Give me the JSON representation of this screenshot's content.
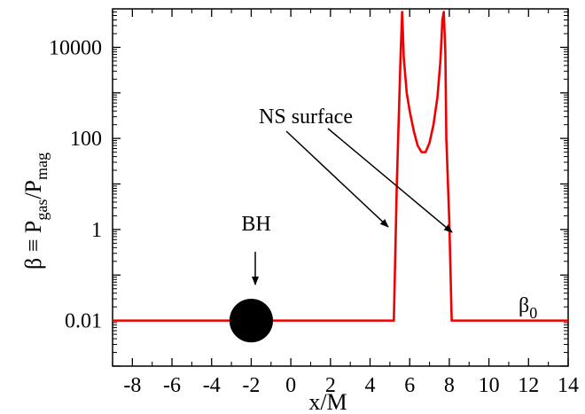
{
  "chart_data": {
    "type": "line",
    "title": "",
    "xlabel": "x/M",
    "ylabel": {
      "base": "β ≡ P",
      "sub1": "gas",
      "mid": "/P",
      "sub2": "mag"
    },
    "xlim": [
      -9,
      14
    ],
    "ylim": [
      0.001,
      70000
    ],
    "yscale": "log",
    "grid": false,
    "line_color": "#ee0000",
    "xticks": [
      -8,
      -6,
      -4,
      -2,
      0,
      2,
      4,
      6,
      8,
      10,
      12,
      14
    ],
    "xtick_labels": [
      "-8",
      "-6",
      "-4",
      "-2",
      "0",
      "2",
      "4",
      "6",
      "8",
      "10",
      "12",
      "14"
    ],
    "yticks": [
      0.01,
      1,
      100,
      10000
    ],
    "ytick_labels": [
      "0.01",
      "1",
      "100",
      "10000"
    ],
    "series": [
      {
        "x": [
          -9.2,
          5.2,
          5.35,
          5.45,
          5.55,
          5.62,
          5.7,
          5.85,
          6.0,
          6.2,
          6.4,
          6.6,
          6.8,
          7.0,
          7.2,
          7.4,
          7.55,
          7.65,
          7.72,
          7.8,
          7.85,
          8.0,
          8.12,
          14.5
        ],
        "y": [
          0.01,
          0.01,
          10,
          300,
          9000,
          60000,
          6000,
          1000,
          400,
          150,
          70,
          50,
          50,
          80,
          200,
          800,
          5000,
          40000,
          60000,
          8000,
          100,
          1.5,
          0.01,
          0.01
        ]
      }
    ],
    "annotations": {
      "ns_surface": "NS surface",
      "bh": "BH",
      "beta0": {
        "base": "β",
        "sub": "0"
      }
    },
    "black_hole": {
      "x": -2,
      "y": 0.01,
      "radius_x": 1.1
    }
  }
}
